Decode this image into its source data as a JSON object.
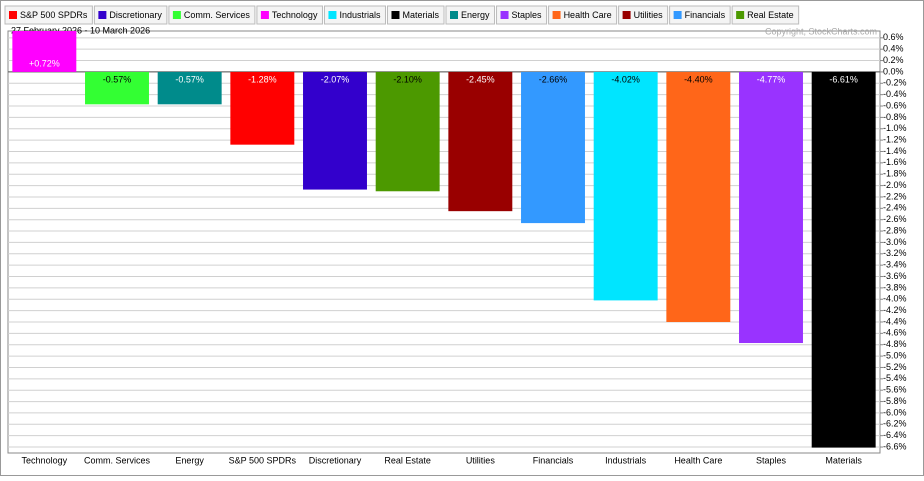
{
  "chart_data": {
    "type": "bar",
    "subtitle": "27 February 2026 - 10 March 2026",
    "copyright": "Copyright, StockCharts.com",
    "legend": [
      {
        "name": "S&P 500 SPDRs",
        "color": "#ff0000"
      },
      {
        "name": "Discretionary",
        "color": "#3300cc"
      },
      {
        "name": "Comm. Services",
        "color": "#33ff33"
      },
      {
        "name": "Technology",
        "color": "#ff00ff"
      },
      {
        "name": "Industrials",
        "color": "#00e5ff"
      },
      {
        "name": "Materials",
        "color": "#000000"
      },
      {
        "name": "Energy",
        "color": "#008b8b"
      },
      {
        "name": "Staples",
        "color": "#9933ff"
      },
      {
        "name": "Health Care",
        "color": "#ff6619"
      },
      {
        "name": "Utilities",
        "color": "#990000"
      },
      {
        "name": "Financials",
        "color": "#3399ff"
      },
      {
        "name": "Real Estate",
        "color": "#4c9900"
      }
    ],
    "categories": [
      "Technology",
      "Comm. Services",
      "Energy",
      "S&P 500 SPDRs",
      "Discretionary",
      "Real Estate",
      "Utilities",
      "Financials",
      "Industrials",
      "Health Care",
      "Staples",
      "Materials"
    ],
    "values": [
      0.72,
      -0.57,
      -0.57,
      -1.28,
      -2.07,
      -2.1,
      -2.45,
      -2.66,
      -4.02,
      -4.4,
      -4.77,
      -6.61
    ],
    "value_labels": [
      "+0.72%",
      "-0.57%",
      "-0.57%",
      "-1.28%",
      "-2.07%",
      "-2.10%",
      "-2.45%",
      "-2.66%",
      "-4.02%",
      "-4.40%",
      "-4.77%",
      "-6.61%"
    ],
    "colors": [
      "#ff00ff",
      "#33ff33",
      "#008b8b",
      "#ff0000",
      "#3300cc",
      "#4c9900",
      "#990000",
      "#3399ff",
      "#00e5ff",
      "#ff6619",
      "#9933ff",
      "#000000"
    ],
    "ylim": [
      -6.705,
      0.72
    ],
    "yticks": [
      {
        "value": 0.6,
        "label": "0.6%"
      },
      {
        "value": 0.4,
        "label": "0.4%"
      },
      {
        "value": 0.2,
        "label": "0.2%"
      },
      {
        "value": 0.0,
        "label": "0.0%"
      },
      {
        "value": -0.2,
        "label": "-0.2%"
      },
      {
        "value": -0.4,
        "label": "-0.4%"
      },
      {
        "value": -0.6,
        "label": "-0.6%"
      },
      {
        "value": -0.8,
        "label": "-0.8%"
      },
      {
        "value": -1.0,
        "label": "-1.0%"
      },
      {
        "value": -1.2,
        "label": "-1.2%"
      },
      {
        "value": -1.4,
        "label": "-1.4%"
      },
      {
        "value": -1.6,
        "label": "-1.6%"
      },
      {
        "value": -1.8,
        "label": "-1.8%"
      },
      {
        "value": -2.0,
        "label": "-2.0%"
      },
      {
        "value": -2.2,
        "label": "-2.2%"
      },
      {
        "value": -2.4,
        "label": "-2.4%"
      },
      {
        "value": -2.6,
        "label": "-2.6%"
      },
      {
        "value": -2.8,
        "label": "-2.8%"
      },
      {
        "value": -3.0,
        "label": "-3.0%"
      },
      {
        "value": -3.2,
        "label": "-3.2%"
      },
      {
        "value": -3.4,
        "label": "-3.4%"
      },
      {
        "value": -3.6,
        "label": "-3.6%"
      },
      {
        "value": -3.8,
        "label": "-3.8%"
      },
      {
        "value": -4.0,
        "label": "-4.0%"
      },
      {
        "value": -4.2,
        "label": "-4.2%"
      },
      {
        "value": -4.4,
        "label": "-4.4%"
      },
      {
        "value": -4.6,
        "label": "-4.6%"
      },
      {
        "value": -4.8,
        "label": "-4.8%"
      },
      {
        "value": -5.0,
        "label": "-5.0%"
      },
      {
        "value": -5.2,
        "label": "-5.2%"
      },
      {
        "value": -5.4,
        "label": "-5.4%"
      },
      {
        "value": -5.6,
        "label": "-5.6%"
      },
      {
        "value": -5.8,
        "label": "-5.8%"
      },
      {
        "value": -6.0,
        "label": "-6.0%"
      },
      {
        "value": -6.2,
        "label": "-6.2%"
      },
      {
        "value": -6.4,
        "label": "-6.4%"
      },
      {
        "value": -6.6,
        "label": "-6.6%"
      }
    ],
    "grid": true
  }
}
